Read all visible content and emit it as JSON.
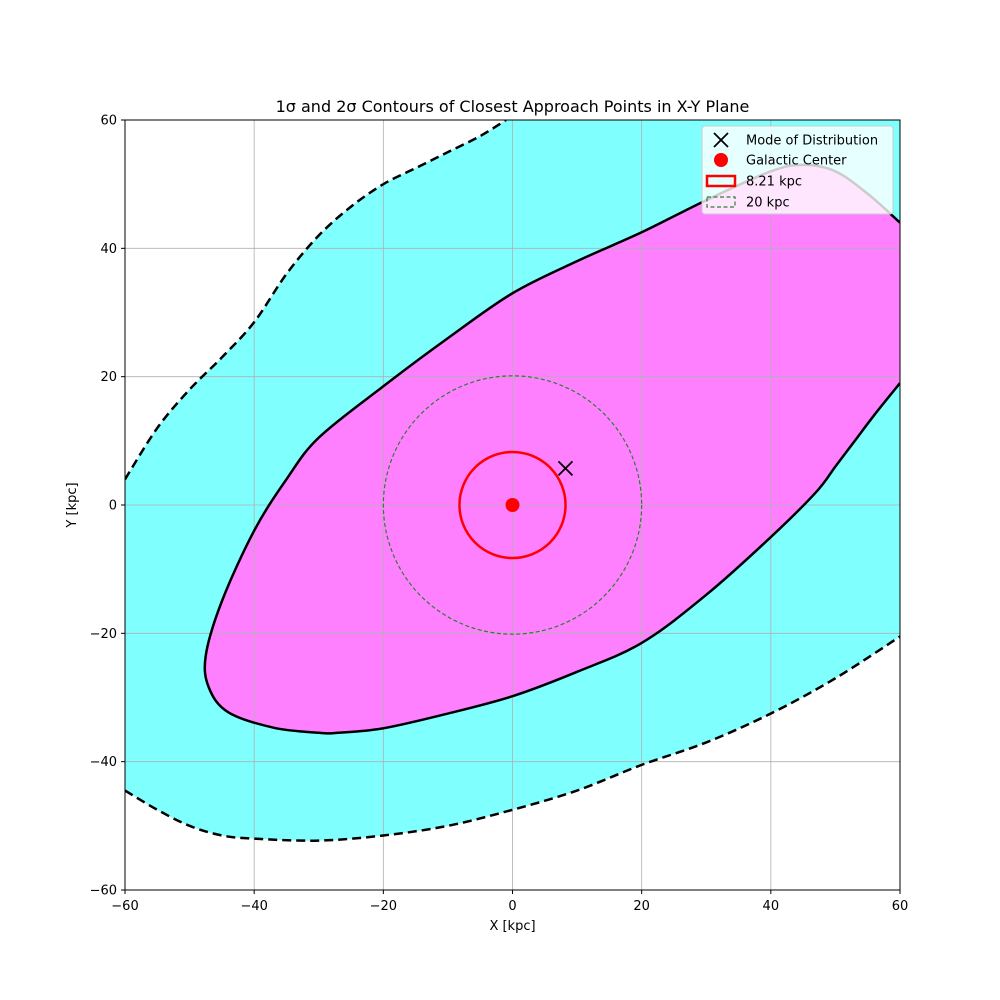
{
  "chart_data": {
    "type": "contour",
    "title": "1σ and 2σ Contours of Closest Approach Points in X-Y Plane",
    "xlabel": "X [kpc]",
    "ylabel": "Y [kpc]",
    "xlim": [
      -60,
      60
    ],
    "ylim": [
      -60,
      60
    ],
    "xticks": [
      -60,
      -40,
      -20,
      0,
      20,
      40,
      60
    ],
    "yticks": [
      -60,
      -40,
      -20,
      0,
      20,
      40,
      60
    ],
    "xtick_labels": [
      "−60",
      "−40",
      "−20",
      "0",
      "20",
      "40",
      "60"
    ],
    "ytick_labels": [
      "−60",
      "−40",
      "−20",
      "0",
      "20",
      "40",
      "60"
    ],
    "grid": true,
    "legend_position": "top-right",
    "colors": {
      "outer_fill": "#80ffff",
      "inner_fill": "#ff80ff",
      "contour_line": "#000000",
      "galactic_center": "#ff0000",
      "circle_8kpc": "#ff0000",
      "circle_20kpc": "#2e7d32",
      "grid": "#b0b0b0"
    },
    "contour_2sigma": {
      "upper": [
        [
          -60,
          4
        ],
        [
          -55,
          12
        ],
        [
          -50,
          18
        ],
        [
          -45,
          23
        ],
        [
          -40,
          28.5
        ],
        [
          -35,
          36
        ],
        [
          -30,
          42
        ],
        [
          -25,
          46.5
        ],
        [
          -20,
          50
        ],
        [
          -15,
          52.5
        ],
        [
          -10,
          55
        ],
        [
          -5,
          57.5
        ],
        [
          -1,
          60
        ]
      ],
      "lower": [
        [
          -60,
          -44.5
        ],
        [
          -55,
          -47.5
        ],
        [
          -50,
          -50
        ],
        [
          -45,
          -51.5
        ],
        [
          -40,
          -52
        ],
        [
          -30,
          -52.3
        ],
        [
          -20,
          -51.5
        ],
        [
          -10,
          -50
        ],
        [
          0,
          -47.5
        ],
        [
          10,
          -44.5
        ],
        [
          20,
          -40.5
        ],
        [
          30,
          -37
        ],
        [
          40,
          -32.5
        ],
        [
          50,
          -27
        ],
        [
          60,
          -20.5
        ]
      ]
    },
    "contour_1sigma": [
      [
        60,
        44
      ],
      [
        55,
        48.5
      ],
      [
        50,
        52
      ],
      [
        45,
        53
      ],
      [
        40,
        52
      ],
      [
        30,
        47.5
      ],
      [
        20,
        42.5
      ],
      [
        10,
        38
      ],
      [
        0,
        33
      ],
      [
        -10,
        26
      ],
      [
        -20,
        18.5
      ],
      [
        -30,
        10.5
      ],
      [
        -35,
        4
      ],
      [
        -40,
        -4
      ],
      [
        -45,
        -15
      ],
      [
        -47.5,
        -23.5
      ],
      [
        -47,
        -28.5
      ],
      [
        -44,
        -32.3
      ],
      [
        -37,
        -34.7
      ],
      [
        -30,
        -35.5
      ],
      [
        -27,
        -35.5
      ],
      [
        -20,
        -34.8
      ],
      [
        -10,
        -32.5
      ],
      [
        0,
        -29.8
      ],
      [
        10,
        -26
      ],
      [
        20,
        -21.5
      ],
      [
        30,
        -14
      ],
      [
        40,
        -5
      ],
      [
        47,
        2
      ],
      [
        50,
        6
      ],
      [
        53,
        10
      ],
      [
        56,
        14
      ],
      [
        60,
        19
      ]
    ],
    "mode_of_distribution": {
      "x": 8.2,
      "y": 5.7
    },
    "galactic_center": {
      "x": 0,
      "y": 0
    },
    "circles": [
      {
        "name": "8.21 kpc",
        "radius": 8.21,
        "style": "solid"
      },
      {
        "name": "20 kpc",
        "radius": 20,
        "style": "dashed"
      }
    ],
    "legend": [
      {
        "label": "Mode of Distribution",
        "marker": "x"
      },
      {
        "label": "Galactic Center",
        "marker": "dot"
      },
      {
        "label": "8.21 kpc",
        "marker": "red-rect"
      },
      {
        "label": "20 kpc",
        "marker": "green-dashed-rect"
      }
    ]
  }
}
